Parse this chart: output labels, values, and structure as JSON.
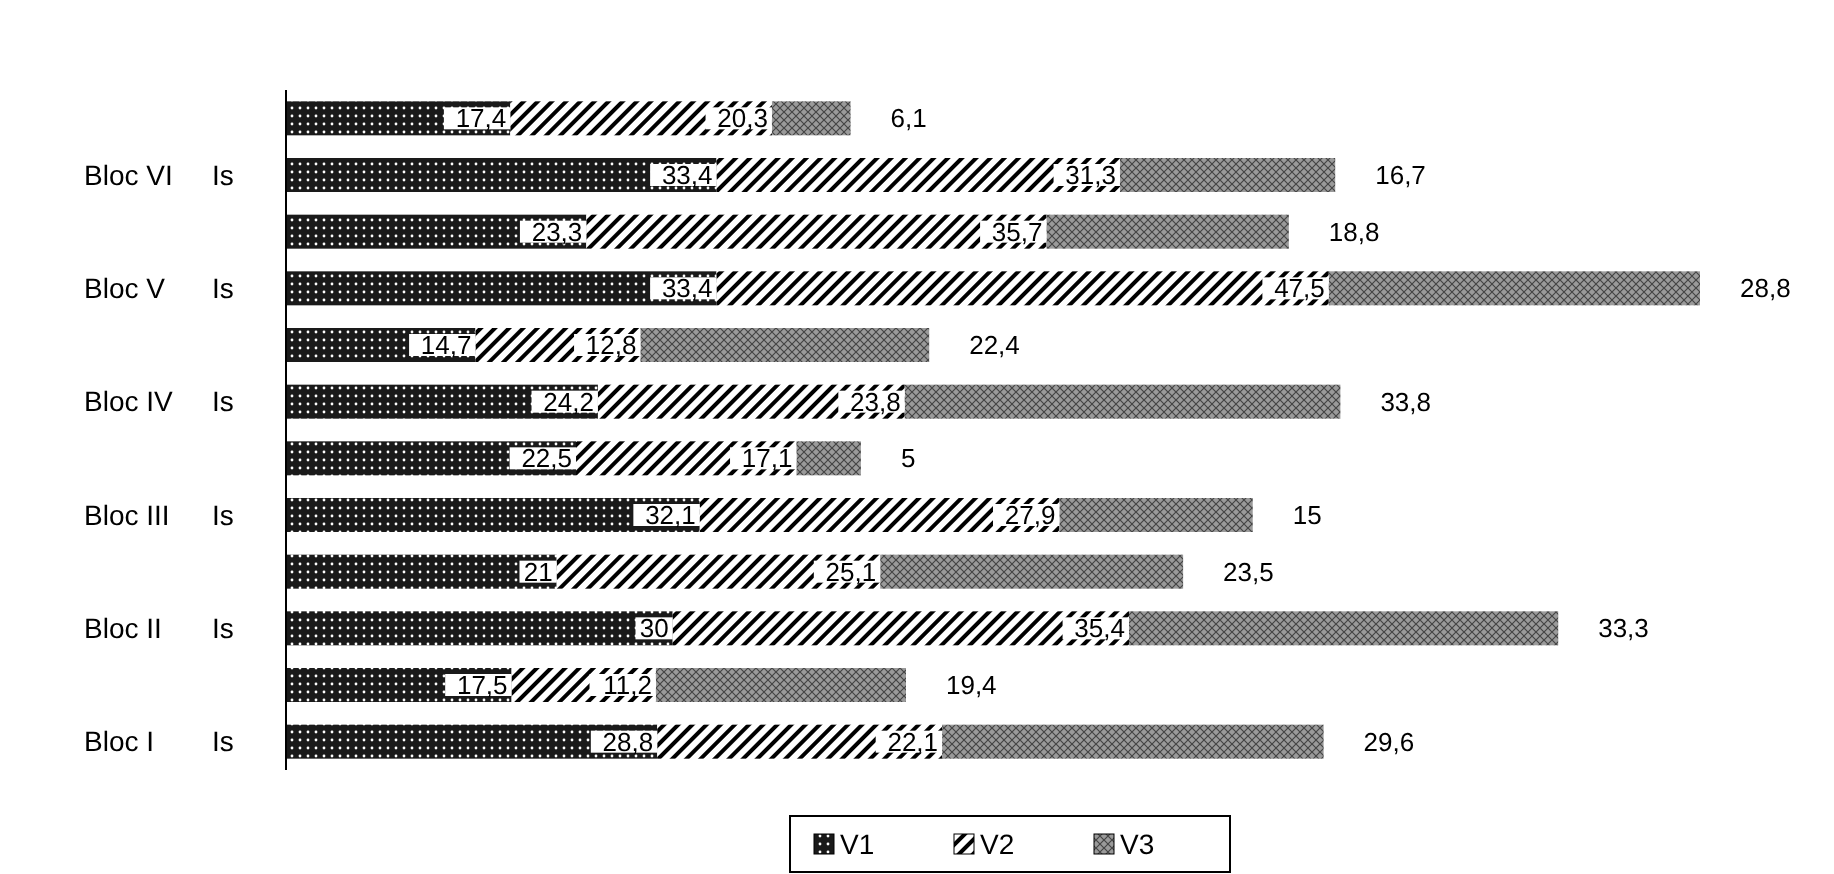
{
  "chart_data": {
    "type": "bar",
    "orientation": "horizontal",
    "stacked": true,
    "legend": "bottom",
    "categories": [
      null,
      "Is",
      null,
      "Is",
      null,
      "Is",
      null,
      "Is",
      null,
      "Is",
      null,
      "Is"
    ],
    "annotations": [
      "Bloc VI",
      "Bloc V",
      "Bloc IV",
      "Bloc III",
      "Bloc II",
      "Bloc I"
    ],
    "series": [
      {
        "name": "V1",
        "color": "#1a1a1a",
        "values": [
          17.4,
          33.4,
          23.3,
          33.4,
          14.7,
          24.2,
          22.5,
          32.1,
          21,
          30,
          17.5,
          28.8
        ],
        "value_labels": [
          "17,4",
          "33,4",
          "23,3",
          "33,4",
          "14,7",
          "24,2",
          "22,5",
          "32,1",
          "21",
          "30",
          "17,5",
          "28,8"
        ]
      },
      {
        "name": "V2",
        "color": "#ffffff",
        "values": [
          20.3,
          31.3,
          35.7,
          47.5,
          12.8,
          23.8,
          17.1,
          27.9,
          25.1,
          35.4,
          11.2,
          22.1
        ],
        "value_labels": [
          "20,3",
          "31,3",
          "35,7",
          "47,5",
          "12,8",
          "23,8",
          "17,1",
          "27,9",
          "25,1",
          "35,4",
          "11,2",
          "22,1"
        ]
      },
      {
        "name": "V3",
        "color": "#9a9a9a",
        "values": [
          6.1,
          16.7,
          18.8,
          28.8,
          22.4,
          33.8,
          5,
          15,
          23.5,
          33.3,
          19.4,
          29.6
        ],
        "value_labels": [
          "6,1",
          "16,7",
          "18,8",
          "28,8",
          "22,4",
          "33,8",
          "5",
          "15",
          "23,5",
          "33,3",
          "19,4",
          "29,6"
        ]
      }
    ]
  }
}
